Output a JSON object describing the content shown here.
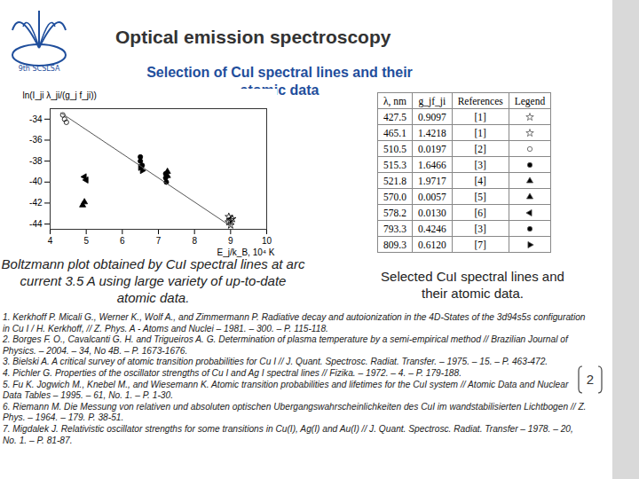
{
  "logo_text": "9th SCSLSA",
  "title": "Optical emission spectroscopy",
  "subtitle": "Selection of CuI spectral lines and their atomic data",
  "chart_data": {
    "type": "scatter",
    "xlabel": "E_j/k_B, 10⁴ K",
    "ylabel": "ln(I_ji λ_ji/(g_j f_ji))",
    "xlim": [
      4,
      10
    ],
    "xticks": [
      4,
      5,
      6,
      7,
      8,
      9,
      10
    ],
    "ylim": [
      -44.5,
      -33
    ],
    "yticks": [
      -44,
      -42,
      -40,
      -38,
      -36,
      -34
    ],
    "series": [
      {
        "name": "427.5",
        "marker": "star",
        "x": [
          8.95,
          9.0,
          9.05
        ],
        "values": [
          -43.8,
          -44.1,
          -43.5
        ]
      },
      {
        "name": "465.1",
        "marker": "star",
        "x": [
          8.95,
          9.0
        ],
        "values": [
          -43.3,
          -43.6
        ]
      },
      {
        "name": "510.5",
        "marker": "circle-open",
        "x": [
          4.35,
          4.4,
          4.45
        ],
        "values": [
          -33.6,
          -34.0,
          -34.3
        ]
      },
      {
        "name": "515.3",
        "marker": "circle",
        "x": [
          7.2,
          7.2,
          7.22
        ],
        "values": [
          -39.2,
          -39.6,
          -40.0
        ]
      },
      {
        "name": "521.8",
        "marker": "triangle",
        "x": [
          7.25,
          7.25
        ],
        "values": [
          -39.0,
          -39.4
        ]
      },
      {
        "name": "570.0",
        "marker": "triangle",
        "x": [
          4.9,
          4.95
        ],
        "values": [
          -42.2,
          -41.9
        ]
      },
      {
        "name": "578.2",
        "marker": "triangle-left",
        "x": [
          4.95,
          5.0
        ],
        "values": [
          -39.5,
          -39.8
        ]
      },
      {
        "name": "793.3",
        "marker": "circle",
        "x": [
          6.5,
          6.5,
          6.55
        ],
        "values": [
          -37.6,
          -38.0,
          -38.4
        ]
      },
      {
        "name": "809.3",
        "marker": "triangle-right",
        "x": [
          6.5,
          6.55
        ],
        "values": [
          -38.6,
          -38.9
        ]
      },
      {
        "type": "line",
        "x": [
          4.3,
          9.0
        ],
        "values": [
          -33.4,
          -44.2
        ]
      }
    ]
  },
  "chart_caption": "Boltzmann plot obtained by CuI spectral lines at arc current 3.5 A using large variety of up-to-date atomic data.",
  "table": {
    "header": [
      "λ, nm",
      "g_jf_ji",
      "References",
      "Legend"
    ],
    "rows": [
      [
        "427.5",
        "0.9097",
        "[1]"
      ],
      [
        "465.1",
        "1.4218",
        "[1]"
      ],
      [
        "510.5",
        "0.0197",
        "[2]"
      ],
      [
        "515.3",
        "1.6466",
        "[3]"
      ],
      [
        "521.8",
        "1.9717",
        "[4]"
      ],
      [
        "570.0",
        "0.0057",
        "[5]"
      ],
      [
        "578.2",
        "0.0130",
        "[6]"
      ],
      [
        "793.3",
        "0.4246",
        "[3]"
      ],
      [
        "809.3",
        "0.6120",
        "[7]"
      ]
    ]
  },
  "table_caption": "Selected CuI spectral lines and their atomic data.",
  "references": [
    "1. Kerkhoff P. Micali G., Werner K., Wolf A., and Zimmermann P. Radiative decay and autoionization in the 4D-States of the 3d94s5s configuration in Cu I / H. Kerkhoff, // Z. Phys. A - Atoms and Nuclei – 1981. – 300. – P. 115-118.",
    "2. Borges F. O., Cavalcanti G. H. and Trigueiros A. G. Determination of plasma temperature by a semi-empirical method // Brazilian Journal of Physics. – 2004. – 34, No 4B. – P. 1673-1676.",
    "3. Bielski A. A critical survey of atomic transition probabilities for Cu I // J. Quant. Spectrosc. Radiat. Transfer. – 1975. – 15. – P. 463-472.",
    "4. Pichler G. Properties of the oscillator strengths of Cu I and Ag I spectral lines // Fizika. – 1972. – 4. – P. 179-188.",
    "5. Fu K. Jogwich M., Knebel M., and Wiesemann K. Atomic transition probabilities and lifetimes for the CuI system // Atomic Data and Nuclear Data Tables – 1995. – 61, No. 1. – P. 1-30.",
    "6. Riemann M. Die Messung von relativen und absoluten optischen Ubergangswahrscheinlichkeiten des CuI im wandstabilisierten Lichtbogen // Z. Phys. – 1964. – 179. P. 38-51.",
    "7. Migdalek J. Relativistic oscillator strengths for some transitions in Cu(I), Ag(I) and Au(I) // J. Quant. Spectrosc. Radiat. Transfer – 1978. – 20, No. 1. – P. 81-87."
  ],
  "page_number": "2"
}
